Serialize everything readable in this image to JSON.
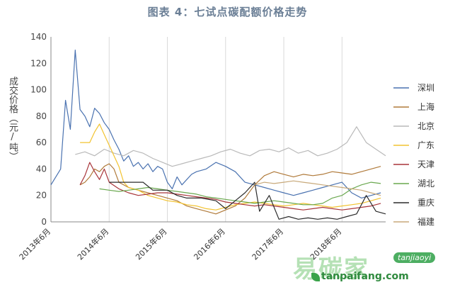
{
  "chart_data": {
    "type": "line",
    "title": "图表 4：七试点碳配额价格走势",
    "ylabel": "成交价格（元/吨）",
    "ylim": [
      0,
      140
    ],
    "yticks": [
      0,
      20,
      40,
      60,
      80,
      100,
      120,
      140
    ],
    "xticks": [
      "2013年6月",
      "2014年6月",
      "2015年6月",
      "2016年6月",
      "2017年6月",
      "2018年6月"
    ],
    "xrange": [
      "2013-06",
      "2019-03"
    ],
    "grid": "vertical",
    "legend_position": "right",
    "series": [
      {
        "name": "深圳",
        "color": "#4a72b0",
        "points": [
          [
            "2013-06",
            28
          ],
          [
            "2013-08",
            40
          ],
          [
            "2013-09",
            92
          ],
          [
            "2013-10",
            70
          ],
          [
            "2013-11",
            130
          ],
          [
            "2013-12",
            85
          ],
          [
            "2014-01",
            80
          ],
          [
            "2014-02",
            72
          ],
          [
            "2014-03",
            86
          ],
          [
            "2014-04",
            82
          ],
          [
            "2014-05",
            75
          ],
          [
            "2014-06",
            70
          ],
          [
            "2014-07",
            62
          ],
          [
            "2014-08",
            55
          ],
          [
            "2014-09",
            46
          ],
          [
            "2014-10",
            50
          ],
          [
            "2014-11",
            42
          ],
          [
            "2014-12",
            45
          ],
          [
            "2015-01",
            40
          ],
          [
            "2015-02",
            44
          ],
          [
            "2015-03",
            38
          ],
          [
            "2015-04",
            42
          ],
          [
            "2015-05",
            40
          ],
          [
            "2015-06",
            30
          ],
          [
            "2015-07",
            25
          ],
          [
            "2015-08",
            34
          ],
          [
            "2015-09",
            28
          ],
          [
            "2015-10",
            32
          ],
          [
            "2015-11",
            36
          ],
          [
            "2015-12",
            38
          ],
          [
            "2016-02",
            40
          ],
          [
            "2016-04",
            45
          ],
          [
            "2016-06",
            42
          ],
          [
            "2016-08",
            38
          ],
          [
            "2016-10",
            30
          ],
          [
            "2016-12",
            28
          ],
          [
            "2017-02",
            26
          ],
          [
            "2017-04",
            24
          ],
          [
            "2017-06",
            22
          ],
          [
            "2017-08",
            20
          ],
          [
            "2017-10",
            22
          ],
          [
            "2017-12",
            24
          ],
          [
            "2018-02",
            26
          ],
          [
            "2018-04",
            28
          ],
          [
            "2018-06",
            30
          ],
          [
            "2018-08",
            22
          ],
          [
            "2018-10",
            18
          ],
          [
            "2018-12",
            20
          ],
          [
            "2019-02",
            22
          ]
        ]
      },
      {
        "name": "上海",
        "color": "#b07a3a",
        "points": [
          [
            "2013-12",
            28
          ],
          [
            "2014-01",
            30
          ],
          [
            "2014-02",
            34
          ],
          [
            "2014-03",
            40
          ],
          [
            "2014-04",
            38
          ],
          [
            "2014-05",
            42
          ],
          [
            "2014-06",
            44
          ],
          [
            "2014-07",
            40
          ],
          [
            "2014-08",
            30
          ],
          [
            "2014-10",
            26
          ],
          [
            "2014-12",
            24
          ],
          [
            "2015-02",
            22
          ],
          [
            "2015-04",
            20
          ],
          [
            "2015-06",
            18
          ],
          [
            "2015-08",
            16
          ],
          [
            "2015-10",
            12
          ],
          [
            "2015-12",
            10
          ],
          [
            "2016-02",
            8
          ],
          [
            "2016-04",
            6
          ],
          [
            "2016-06",
            9
          ],
          [
            "2016-08",
            12
          ],
          [
            "2016-10",
            18
          ],
          [
            "2016-12",
            28
          ],
          [
            "2017-02",
            35
          ],
          [
            "2017-04",
            38
          ],
          [
            "2017-06",
            36
          ],
          [
            "2017-08",
            34
          ],
          [
            "2017-10",
            36
          ],
          [
            "2017-12",
            35
          ],
          [
            "2018-02",
            36
          ],
          [
            "2018-04",
            38
          ],
          [
            "2018-06",
            37
          ],
          [
            "2018-08",
            36
          ],
          [
            "2018-10",
            38
          ],
          [
            "2018-12",
            40
          ],
          [
            "2019-02",
            42
          ]
        ]
      },
      {
        "name": "北京",
        "color": "#b9b9b9",
        "points": [
          [
            "2013-11",
            51
          ],
          [
            "2014-01",
            53
          ],
          [
            "2014-03",
            50
          ],
          [
            "2014-05",
            55
          ],
          [
            "2014-07",
            52
          ],
          [
            "2014-09",
            50
          ],
          [
            "2014-11",
            54
          ],
          [
            "2015-01",
            52
          ],
          [
            "2015-03",
            48
          ],
          [
            "2015-05",
            45
          ],
          [
            "2015-07",
            42
          ],
          [
            "2015-09",
            44
          ],
          [
            "2015-11",
            46
          ],
          [
            "2016-01",
            48
          ],
          [
            "2016-03",
            50
          ],
          [
            "2016-05",
            53
          ],
          [
            "2016-07",
            55
          ],
          [
            "2016-09",
            52
          ],
          [
            "2016-11",
            50
          ],
          [
            "2017-01",
            54
          ],
          [
            "2017-03",
            55
          ],
          [
            "2017-05",
            53
          ],
          [
            "2017-07",
            56
          ],
          [
            "2017-09",
            52
          ],
          [
            "2017-11",
            54
          ],
          [
            "2018-01",
            50
          ],
          [
            "2018-03",
            52
          ],
          [
            "2018-05",
            55
          ],
          [
            "2018-07",
            60
          ],
          [
            "2018-09",
            72
          ],
          [
            "2018-11",
            60
          ],
          [
            "2019-01",
            55
          ],
          [
            "2019-03",
            50
          ]
        ]
      },
      {
        "name": "广东",
        "color": "#f2c330",
        "points": [
          [
            "2013-12",
            60
          ],
          [
            "2014-02",
            60
          ],
          [
            "2014-03",
            68
          ],
          [
            "2014-04",
            74
          ],
          [
            "2014-05",
            66
          ],
          [
            "2014-06",
            58
          ],
          [
            "2014-07",
            50
          ],
          [
            "2014-08",
            42
          ],
          [
            "2014-09",
            30
          ],
          [
            "2014-10",
            26
          ],
          [
            "2014-12",
            24
          ],
          [
            "2015-02",
            20
          ],
          [
            "2015-04",
            18
          ],
          [
            "2015-06",
            16
          ],
          [
            "2015-08",
            15
          ],
          [
            "2015-10",
            13
          ],
          [
            "2015-12",
            12
          ],
          [
            "2016-02",
            10
          ],
          [
            "2016-04",
            9
          ],
          [
            "2016-06",
            11
          ],
          [
            "2016-08",
            13
          ],
          [
            "2016-10",
            14
          ],
          [
            "2016-12",
            15
          ],
          [
            "2017-02",
            14
          ],
          [
            "2017-04",
            13
          ],
          [
            "2017-06",
            12
          ],
          [
            "2017-08",
            13
          ],
          [
            "2017-10",
            14
          ],
          [
            "2017-12",
            13
          ],
          [
            "2018-02",
            12
          ],
          [
            "2018-04",
            11
          ],
          [
            "2018-06",
            12
          ],
          [
            "2018-08",
            13
          ],
          [
            "2018-10",
            14
          ],
          [
            "2018-12",
            16
          ],
          [
            "2019-02",
            18
          ]
        ]
      },
      {
        "name": "天津",
        "color": "#a8353a",
        "points": [
          [
            "2013-12",
            28
          ],
          [
            "2014-01",
            35
          ],
          [
            "2014-02",
            45
          ],
          [
            "2014-03",
            38
          ],
          [
            "2014-04",
            32
          ],
          [
            "2014-05",
            40
          ],
          [
            "2014-06",
            30
          ],
          [
            "2014-08",
            25
          ],
          [
            "2014-10",
            22
          ],
          [
            "2014-12",
            20
          ],
          [
            "2015-02",
            21
          ],
          [
            "2015-04",
            22
          ],
          [
            "2015-06",
            22
          ],
          [
            "2015-08",
            21
          ],
          [
            "2015-10",
            20
          ],
          [
            "2015-12",
            19
          ],
          [
            "2016-02",
            18
          ],
          [
            "2016-04",
            17
          ],
          [
            "2016-06",
            15
          ],
          [
            "2016-08",
            14
          ],
          [
            "2016-10",
            13
          ],
          [
            "2016-12",
            12
          ],
          [
            "2017-02",
            13
          ],
          [
            "2017-04",
            12
          ],
          [
            "2017-06",
            11
          ],
          [
            "2017-08",
            10
          ],
          [
            "2017-10",
            9
          ],
          [
            "2017-12",
            10
          ],
          [
            "2018-02",
            11
          ],
          [
            "2018-04",
            10
          ],
          [
            "2018-06",
            9
          ],
          [
            "2018-08",
            10
          ],
          [
            "2018-10",
            11
          ],
          [
            "2018-12",
            12
          ],
          [
            "2019-02",
            14
          ]
        ]
      },
      {
        "name": "湖北",
        "color": "#6aa84f",
        "points": [
          [
            "2014-04",
            25
          ],
          [
            "2014-06",
            24
          ],
          [
            "2014-08",
            23
          ],
          [
            "2014-10",
            24
          ],
          [
            "2014-12",
            25
          ],
          [
            "2015-02",
            26
          ],
          [
            "2015-04",
            25
          ],
          [
            "2015-06",
            24
          ],
          [
            "2015-08",
            23
          ],
          [
            "2015-10",
            22
          ],
          [
            "2015-12",
            21
          ],
          [
            "2016-02",
            19
          ],
          [
            "2016-04",
            18
          ],
          [
            "2016-06",
            17
          ],
          [
            "2016-08",
            16
          ],
          [
            "2016-10",
            15
          ],
          [
            "2016-12",
            14
          ],
          [
            "2017-02",
            15
          ],
          [
            "2017-04",
            16
          ],
          [
            "2017-06",
            15
          ],
          [
            "2017-08",
            14
          ],
          [
            "2017-10",
            13
          ],
          [
            "2017-12",
            13
          ],
          [
            "2018-02",
            14
          ],
          [
            "2018-04",
            18
          ],
          [
            "2018-06",
            20
          ],
          [
            "2018-08",
            25
          ],
          [
            "2018-10",
            28
          ],
          [
            "2018-12",
            30
          ],
          [
            "2019-02",
            29
          ]
        ]
      },
      {
        "name": "重庆",
        "color": "#2b2b2b",
        "points": [
          [
            "2014-06",
            30
          ],
          [
            "2014-10",
            30
          ],
          [
            "2015-01",
            30
          ],
          [
            "2015-03",
            24
          ],
          [
            "2015-06",
            24
          ],
          [
            "2015-08",
            20
          ],
          [
            "2015-10",
            18
          ],
          [
            "2016-01",
            18
          ],
          [
            "2016-04",
            16
          ],
          [
            "2016-06",
            10
          ],
          [
            "2016-08",
            16
          ],
          [
            "2016-10",
            22
          ],
          [
            "2016-12",
            30
          ],
          [
            "2017-01",
            8
          ],
          [
            "2017-03",
            20
          ],
          [
            "2017-05",
            2
          ],
          [
            "2017-07",
            4
          ],
          [
            "2017-09",
            2
          ],
          [
            "2017-11",
            3
          ],
          [
            "2018-01",
            2
          ],
          [
            "2018-03",
            3
          ],
          [
            "2018-05",
            2
          ],
          [
            "2018-07",
            4
          ],
          [
            "2018-09",
            6
          ],
          [
            "2018-11",
            20
          ],
          [
            "2019-01",
            8
          ],
          [
            "2019-03",
            6
          ]
        ]
      },
      {
        "name": "福建",
        "color": "#c8a97a",
        "points": [
          [
            "2016-12",
            28
          ],
          [
            "2017-02",
            30
          ],
          [
            "2017-04",
            29
          ],
          [
            "2017-06",
            30
          ],
          [
            "2017-08",
            31
          ],
          [
            "2017-10",
            30
          ],
          [
            "2017-12",
            29
          ],
          [
            "2018-02",
            28
          ],
          [
            "2018-04",
            27
          ],
          [
            "2018-06",
            26
          ],
          [
            "2018-08",
            25
          ],
          [
            "2018-10",
            24
          ],
          [
            "2018-12",
            22
          ],
          [
            "2019-02",
            20
          ]
        ]
      }
    ]
  },
  "watermark": {
    "brand_text": "易碳家",
    "badge_text": "tanjiaoyi",
    "site_text": "tanpaifang.com"
  }
}
